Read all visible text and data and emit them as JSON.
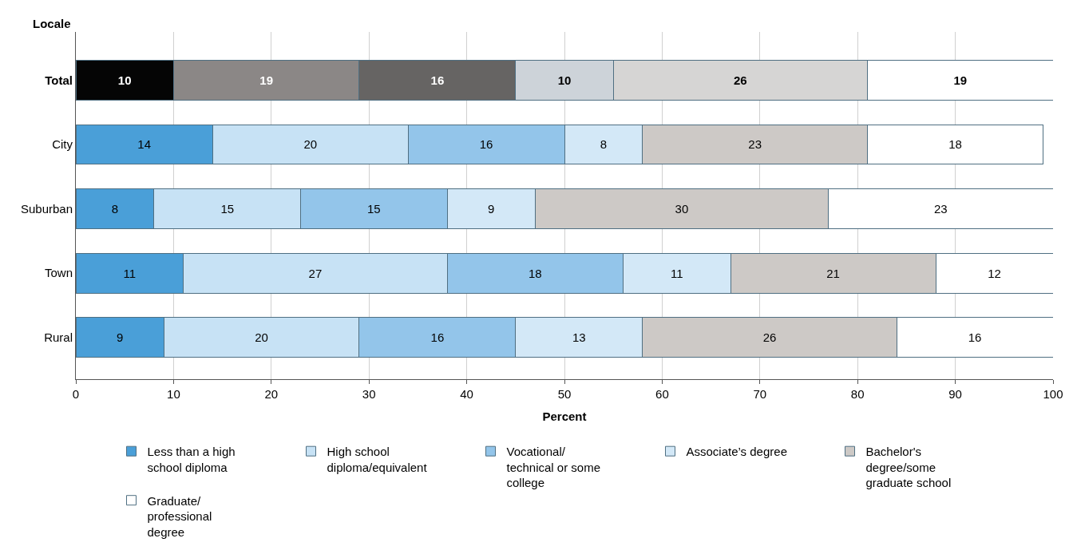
{
  "chart_data": {
    "type": "bar",
    "orientation": "horizontal",
    "stacked": true,
    "data_labels": true,
    "grid": "x",
    "legend": "bottom",
    "ylabel": "Locale",
    "xlabel": "Percent",
    "categories": [
      "Total",
      "City",
      "Suburban",
      "Town",
      "Rural"
    ],
    "xlim": [
      0,
      100
    ],
    "xticks": [
      0,
      10,
      20,
      30,
      40,
      50,
      60,
      70,
      80,
      90,
      100
    ],
    "series": [
      {
        "name": "Less than a high school diploma",
        "color": "#4a9fd8",
        "colors": [
          "#050505",
          "#4a9fd8",
          "#4a9fd8",
          "#4a9fd8",
          "#4a9fd8"
        ],
        "values": [
          10,
          14,
          8,
          11,
          9
        ]
      },
      {
        "name": "High school diploma/equivalent",
        "color": "#c7e2f5",
        "colors": [
          "#8b8786",
          "#c7e2f5",
          "#c7e2f5",
          "#c7e2f5",
          "#c7e2f5"
        ],
        "values": [
          19,
          20,
          15,
          27,
          20
        ]
      },
      {
        "name": "Vocational/ technical or some college",
        "color": "#93c5ea",
        "colors": [
          "#666463",
          "#93c5ea",
          "#93c5ea",
          "#93c5ea",
          "#93c5ea"
        ],
        "values": [
          16,
          16,
          15,
          18,
          16
        ]
      },
      {
        "name": "Associate’s degree",
        "color": "#d3e8f7",
        "colors": [
          "#cdd3d9",
          "#d3e8f7",
          "#d3e8f7",
          "#d3e8f7",
          "#d3e8f7"
        ],
        "values": [
          10,
          8,
          9,
          11,
          13
        ]
      },
      {
        "name": "Bachelor's degree/some graduate school",
        "color": "#cdc9c6",
        "colors": [
          "#d6d5d4",
          "#cdc9c6",
          "#cdc9c6",
          "#cdc9c6",
          "#cdc9c6"
        ],
        "values": [
          26,
          23,
          30,
          21,
          26
        ]
      },
      {
        "name": "Graduate/ professional degree",
        "color": "#ffffff",
        "colors": [
          "#ffffff",
          "#ffffff",
          "#ffffff",
          "#ffffff",
          "#ffffff"
        ],
        "values": [
          19,
          18,
          23,
          12,
          16
        ]
      }
    ]
  }
}
